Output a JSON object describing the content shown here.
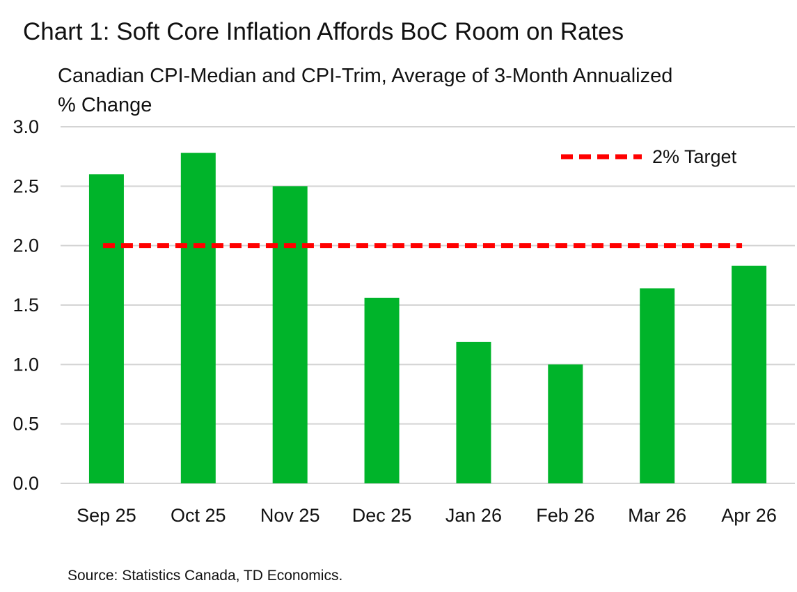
{
  "chart_data": {
    "type": "bar",
    "title": "Chart 1: Soft Core Inflation Affords BoC Room on Rates",
    "subtitle": "Canadian CPI-Median and CPI-Trim, Average of 3-Month Annualized % Change",
    "categories": [
      "Sep 25",
      "Oct 25",
      "Nov 25",
      "Dec 25",
      "Jan 26",
      "Feb 26",
      "Mar 26",
      "Apr 26"
    ],
    "values": [
      2.6,
      2.78,
      2.5,
      1.56,
      1.19,
      1.0,
      1.64,
      1.83
    ],
    "ylim": [
      0.0,
      3.0
    ],
    "yticks": [
      "0.0",
      "0.5",
      "1.0",
      "1.5",
      "2.0",
      "2.5",
      "3.0"
    ],
    "reference_line": {
      "name": "2% Target",
      "value": 2.0
    },
    "bar_color": "#00b42a",
    "target_color": "#ff0000",
    "grid_color": "#d4d4d4",
    "grid": true,
    "legend_position": "top-right",
    "source": "Source: Statistics Canada, TD Economics."
  }
}
